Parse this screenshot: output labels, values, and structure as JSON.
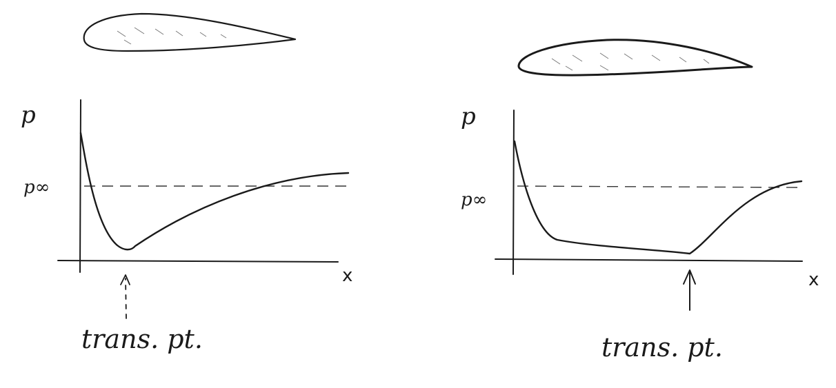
{
  "panels": [
    {
      "id": "left",
      "ylabel": "p",
      "ref_label": "p∞",
      "xlabel": "x",
      "annotation": "trans. pt."
    },
    {
      "id": "right",
      "ylabel": "p",
      "ref_label": "p∞",
      "xlabel": "x",
      "annotation": "trans. pt."
    }
  ],
  "colors": {
    "ink": "#1a1a1a",
    "airfoil_fill": "#f4f4f4"
  }
}
